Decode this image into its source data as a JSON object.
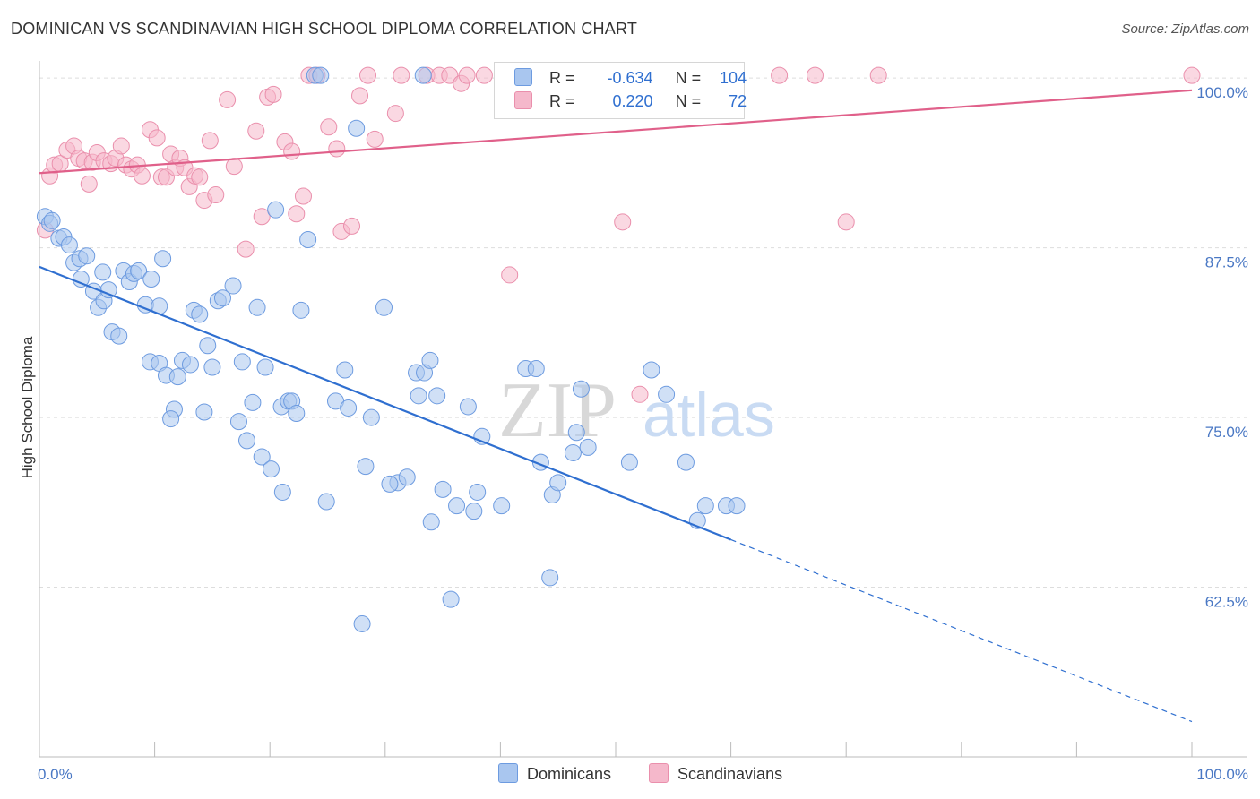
{
  "title": "DOMINICAN VS SCANDINAVIAN HIGH SCHOOL DIPLOMA CORRELATION CHART",
  "source": "Source: ZipAtlas.com",
  "watermark": {
    "zip": "ZIP",
    "atlas": "atlas"
  },
  "colors": {
    "blue_fill": "#a9c6ef",
    "blue_stroke": "#6d9be0",
    "blue_line": "#2f6fd0",
    "pink_fill": "#f5b8cb",
    "pink_stroke": "#ea8fac",
    "pink_line": "#e0608a",
    "grid": "#dddddd",
    "label": "#4a78c4"
  },
  "legend": {
    "r_label": "R =",
    "n_label": "N =",
    "dominicans": {
      "r": "-0.634",
      "n": "104"
    },
    "scandinavians": {
      "r": "0.220",
      "n": "72"
    }
  },
  "bottom_legend": {
    "dominicans": "Dominicans",
    "scandinavians": "Scandinavians"
  },
  "chart_data": {
    "type": "scatter",
    "title": "DOMINICAN VS SCANDINAVIAN HIGH SCHOOL DIPLOMA CORRELATION CHART",
    "xlabel": "",
    "ylabel": "High School Diploma",
    "xlim": [
      0,
      100
    ],
    "ylim": [
      50.0,
      101.0
    ],
    "x_tick_labels": [
      "0.0%",
      "100.0%"
    ],
    "y_ticks": [
      62.5,
      75.0,
      87.5,
      100.0
    ],
    "y_tick_labels": [
      "62.5%",
      "75.0%",
      "87.5%",
      "100.0%"
    ],
    "grid": true,
    "series": [
      {
        "name": "Dominicans",
        "r": -0.634,
        "n": 104,
        "trend": {
          "x0": 0,
          "y0": 86.1,
          "x1": 60,
          "y1": 66.0,
          "dash_x1": 100,
          "dash_y1": 52.6
        },
        "points": [
          [
            0.5,
            89.8
          ],
          [
            0.9,
            89.3
          ],
          [
            1.1,
            89.5
          ],
          [
            1.7,
            88.2
          ],
          [
            2.1,
            88.3
          ],
          [
            2.6,
            87.7
          ],
          [
            3.0,
            86.4
          ],
          [
            3.5,
            86.7
          ],
          [
            4.1,
            86.9
          ],
          [
            3.6,
            85.2
          ],
          [
            4.7,
            84.3
          ],
          [
            5.1,
            83.1
          ],
          [
            5.6,
            83.6
          ],
          [
            6.0,
            84.4
          ],
          [
            5.5,
            85.7
          ],
          [
            7.3,
            85.8
          ],
          [
            7.8,
            85.0
          ],
          [
            8.2,
            85.6
          ],
          [
            8.6,
            85.8
          ],
          [
            9.2,
            83.3
          ],
          [
            9.7,
            85.2
          ],
          [
            10.4,
            83.2
          ],
          [
            10.7,
            86.7
          ],
          [
            6.3,
            81.3
          ],
          [
            6.9,
            81.0
          ],
          [
            9.6,
            79.1
          ],
          [
            10.4,
            79.0
          ],
          [
            11.0,
            78.1
          ],
          [
            11.7,
            75.6
          ],
          [
            12.0,
            78.0
          ],
          [
            12.4,
            79.2
          ],
          [
            13.1,
            78.9
          ],
          [
            11.4,
            74.9
          ],
          [
            14.3,
            75.4
          ],
          [
            13.4,
            82.9
          ],
          [
            13.9,
            82.6
          ],
          [
            14.6,
            80.3
          ],
          [
            15.0,
            78.7
          ],
          [
            15.5,
            83.6
          ],
          [
            15.9,
            83.8
          ],
          [
            16.8,
            84.7
          ],
          [
            17.3,
            74.7
          ],
          [
            17.6,
            79.1
          ],
          [
            18.0,
            73.3
          ],
          [
            18.5,
            76.1
          ],
          [
            18.9,
            83.1
          ],
          [
            19.3,
            72.1
          ],
          [
            19.6,
            78.7
          ],
          [
            20.1,
            71.2
          ],
          [
            20.5,
            90.3
          ],
          [
            21.0,
            75.8
          ],
          [
            21.6,
            76.2
          ],
          [
            21.9,
            76.2
          ],
          [
            22.3,
            75.3
          ],
          [
            22.7,
            82.9
          ],
          [
            21.1,
            69.5
          ],
          [
            23.3,
            88.1
          ],
          [
            23.9,
            100.2
          ],
          [
            24.4,
            100.2
          ],
          [
            24.9,
            68.8
          ],
          [
            25.7,
            76.2
          ],
          [
            26.5,
            78.5
          ],
          [
            26.8,
            75.7
          ],
          [
            27.5,
            96.3
          ],
          [
            28.3,
            71.4
          ],
          [
            28.8,
            75.0
          ],
          [
            29.9,
            83.1
          ],
          [
            31.1,
            70.2
          ],
          [
            31.9,
            70.6
          ],
          [
            32.9,
            76.6
          ],
          [
            32.7,
            78.3
          ],
          [
            33.4,
            78.3
          ],
          [
            33.9,
            79.2
          ],
          [
            34.5,
            76.6
          ],
          [
            35.0,
            69.7
          ],
          [
            35.7,
            61.6
          ],
          [
            36.2,
            68.5
          ],
          [
            37.2,
            75.8
          ],
          [
            37.7,
            68.1
          ],
          [
            38.0,
            69.5
          ],
          [
            38.4,
            73.6
          ],
          [
            42.2,
            78.6
          ],
          [
            43.1,
            78.6
          ],
          [
            43.5,
            71.7
          ],
          [
            44.5,
            69.3
          ],
          [
            45.0,
            70.2
          ],
          [
            46.3,
            72.4
          ],
          [
            46.6,
            73.9
          ],
          [
            47.0,
            77.1
          ],
          [
            47.6,
            72.8
          ],
          [
            44.3,
            63.2
          ],
          [
            33.3,
            100.2
          ],
          [
            51.2,
            71.7
          ],
          [
            53.1,
            78.5
          ],
          [
            54.4,
            76.7
          ],
          [
            56.1,
            71.7
          ],
          [
            57.1,
            67.4
          ],
          [
            57.8,
            68.5
          ],
          [
            59.6,
            68.5
          ],
          [
            60.5,
            68.5
          ],
          [
            40.1,
            68.5
          ],
          [
            34.0,
            67.3
          ],
          [
            28.0,
            59.8
          ],
          [
            30.4,
            70.1
          ]
        ]
      },
      {
        "name": "Scandinavians",
        "r": 0.22,
        "n": 72,
        "trend": {
          "x0": 0,
          "y0": 93.0,
          "x1": 100,
          "y1": 99.1
        },
        "points": [
          [
            0.5,
            88.8
          ],
          [
            0.9,
            92.8
          ],
          [
            1.3,
            93.6
          ],
          [
            1.8,
            93.7
          ],
          [
            2.4,
            94.7
          ],
          [
            3.0,
            95.0
          ],
          [
            3.4,
            94.1
          ],
          [
            3.9,
            93.9
          ],
          [
            4.3,
            92.2
          ],
          [
            4.6,
            93.8
          ],
          [
            5.0,
            94.5
          ],
          [
            5.6,
            93.9
          ],
          [
            6.2,
            93.7
          ],
          [
            6.6,
            94.1
          ],
          [
            7.1,
            95.0
          ],
          [
            7.5,
            93.6
          ],
          [
            8.0,
            93.3
          ],
          [
            8.5,
            93.6
          ],
          [
            8.9,
            92.8
          ],
          [
            9.6,
            96.2
          ],
          [
            10.2,
            95.6
          ],
          [
            10.6,
            92.7
          ],
          [
            11.0,
            92.7
          ],
          [
            11.4,
            94.4
          ],
          [
            11.8,
            93.4
          ],
          [
            12.2,
            94.1
          ],
          [
            12.6,
            93.4
          ],
          [
            13.0,
            92.0
          ],
          [
            13.5,
            92.8
          ],
          [
            13.9,
            92.7
          ],
          [
            14.3,
            91.0
          ],
          [
            14.8,
            95.4
          ],
          [
            15.3,
            91.4
          ],
          [
            16.3,
            98.4
          ],
          [
            16.9,
            93.5
          ],
          [
            17.9,
            87.4
          ],
          [
            18.8,
            96.1
          ],
          [
            19.3,
            89.8
          ],
          [
            19.8,
            98.6
          ],
          [
            20.3,
            98.8
          ],
          [
            21.3,
            95.3
          ],
          [
            21.9,
            94.6
          ],
          [
            22.3,
            90.0
          ],
          [
            22.9,
            91.3
          ],
          [
            23.4,
            100.2
          ],
          [
            24.1,
            100.2
          ],
          [
            25.1,
            96.4
          ],
          [
            25.8,
            94.8
          ],
          [
            26.2,
            88.7
          ],
          [
            27.1,
            89.1
          ],
          [
            27.8,
            98.7
          ],
          [
            28.5,
            100.2
          ],
          [
            29.1,
            95.5
          ],
          [
            30.9,
            97.4
          ],
          [
            31.4,
            100.2
          ],
          [
            33.6,
            100.2
          ],
          [
            34.7,
            100.2
          ],
          [
            35.6,
            100.2
          ],
          [
            36.6,
            99.6
          ],
          [
            37.1,
            100.2
          ],
          [
            38.6,
            100.2
          ],
          [
            40.8,
            85.5
          ],
          [
            42.9,
            100.2
          ],
          [
            44.5,
            100.2
          ],
          [
            46.2,
            100.2
          ],
          [
            50.6,
            89.4
          ],
          [
            52.1,
            76.7
          ],
          [
            64.2,
            100.2
          ],
          [
            67.3,
            100.2
          ],
          [
            70.0,
            89.4
          ],
          [
            72.8,
            100.2
          ],
          [
            100.0,
            100.2
          ]
        ]
      }
    ]
  }
}
